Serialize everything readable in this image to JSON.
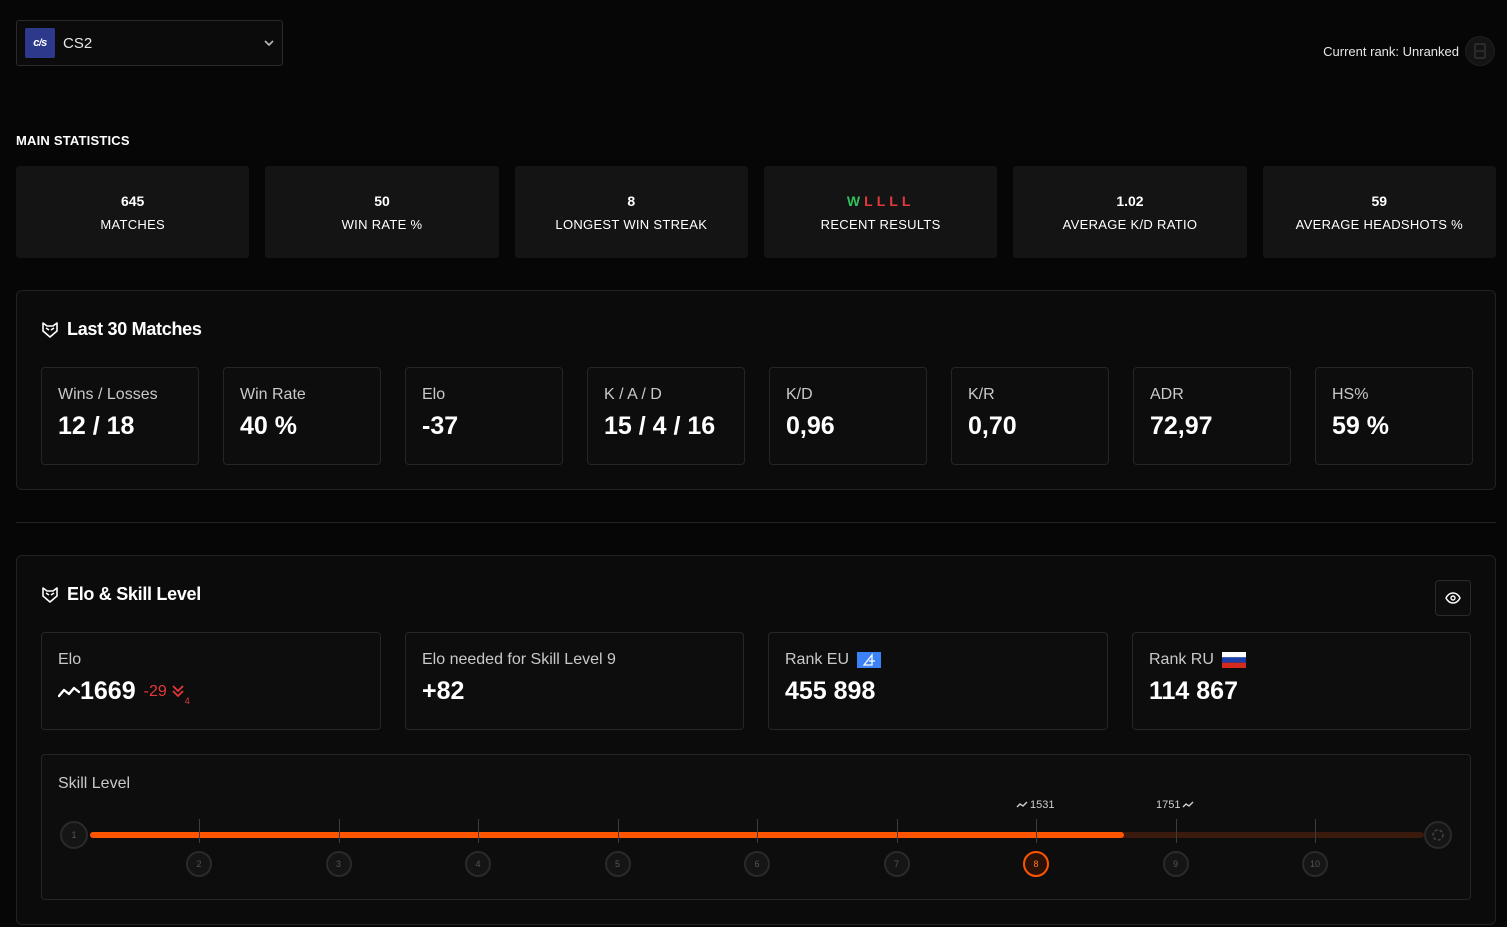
{
  "game_select": {
    "logo": "cs",
    "name": "CS2",
    "icon": "chevron-down-icon"
  },
  "current_rank": {
    "label": "Current rank: Unranked"
  },
  "main_statistics": {
    "heading": "MAIN STATISTICS",
    "items": [
      {
        "value": "645",
        "label": "MATCHES"
      },
      {
        "value": "50",
        "label": "WIN RATE %"
      },
      {
        "value": "8",
        "label": "LONGEST WIN STREAK"
      },
      {
        "value": "",
        "label": "RECENT RESULTS"
      },
      {
        "value": "1.02",
        "label": "AVERAGE K/D RATIO"
      },
      {
        "value": "59",
        "label": "AVERAGE HEADSHOTS %"
      }
    ],
    "recent_results": [
      "W",
      "L",
      "L",
      "L",
      "L"
    ]
  },
  "last30": {
    "title": "Last 30 Matches",
    "cards": [
      {
        "label": "Wins / Losses",
        "value": "12 / 18"
      },
      {
        "label": "Win Rate",
        "value": "40 %"
      },
      {
        "label": "Elo",
        "value": "-37"
      },
      {
        "label": "K / A / D",
        "value": "15 / 4 / 16"
      },
      {
        "label": "K/D",
        "value": "0,96"
      },
      {
        "label": "K/R",
        "value": "0,70"
      },
      {
        "label": "ADR",
        "value": "72,97"
      },
      {
        "label": "HS%",
        "value": "59 %"
      }
    ]
  },
  "elo_skill": {
    "title": "Elo & Skill Level",
    "cards": [
      {
        "label": "Elo",
        "value": "1669",
        "delta": "-29",
        "delta_sub": "4"
      },
      {
        "label": "Elo needed for Skill Level 9",
        "value": "+82"
      },
      {
        "label": "Rank EU",
        "value": "455 898"
      },
      {
        "label": "Rank RU",
        "value": "114 867"
      }
    ],
    "skill": {
      "label": "Skill Level",
      "levels": [
        "1",
        "2",
        "3",
        "4",
        "5",
        "6",
        "7",
        "8",
        "9",
        "10"
      ],
      "current_level": 8,
      "progress_fraction": 0.775,
      "lower_elo": "1531",
      "upper_elo": "1751"
    },
    "colors": {
      "accent": "#ff5500",
      "win": "#2fc15a",
      "loss": "#e5383b"
    }
  }
}
